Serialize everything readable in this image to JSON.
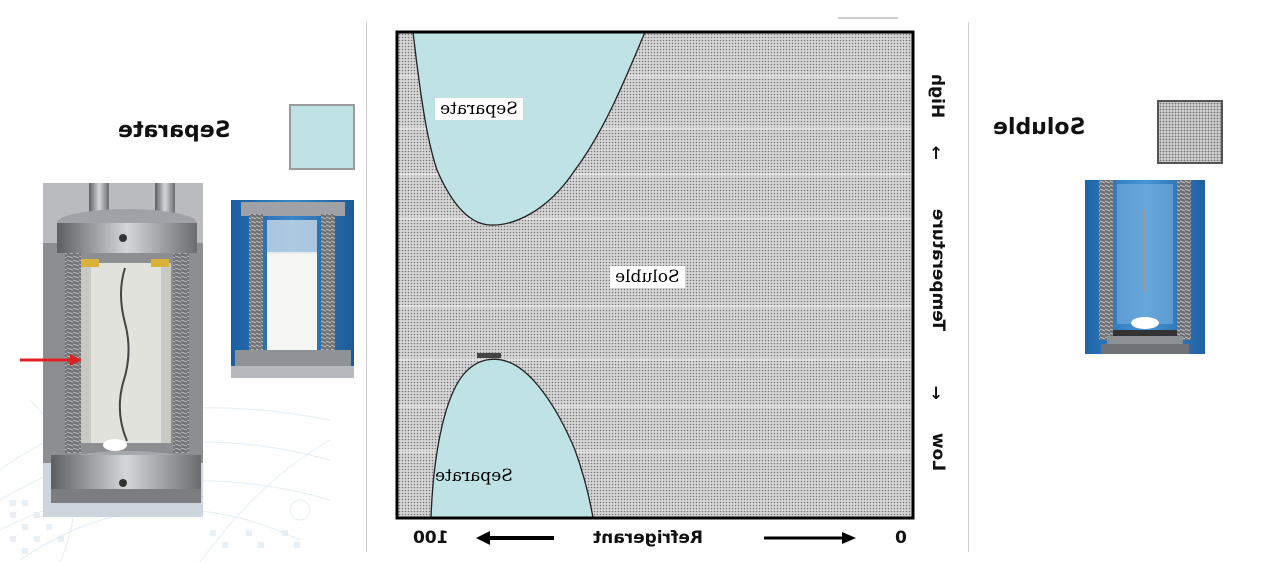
{
  "legend": {
    "separate_label": "Separate",
    "soluble_label": "Soluble",
    "separate_color": "#bfe2e4",
    "soluble_color": "#cfcfcf"
  },
  "diagram": {
    "region_top_label": "Separate",
    "region_middle_label": "Soluble",
    "region_bottom_label": "Separate",
    "x_axis": {
      "left_value": "100",
      "title": "Refrigerant",
      "right_value": "0"
    },
    "y_axis": {
      "top_end": "High",
      "title": "Temperature",
      "bottom_end": "Low"
    }
  },
  "photos": {
    "left_large": "test-cell-photo-separated",
    "left_small": "test-cell-photo-cloudy",
    "right": "test-cell-photo-clear"
  },
  "colors": {
    "arrow": "#e02020",
    "frame": "#000000"
  }
}
